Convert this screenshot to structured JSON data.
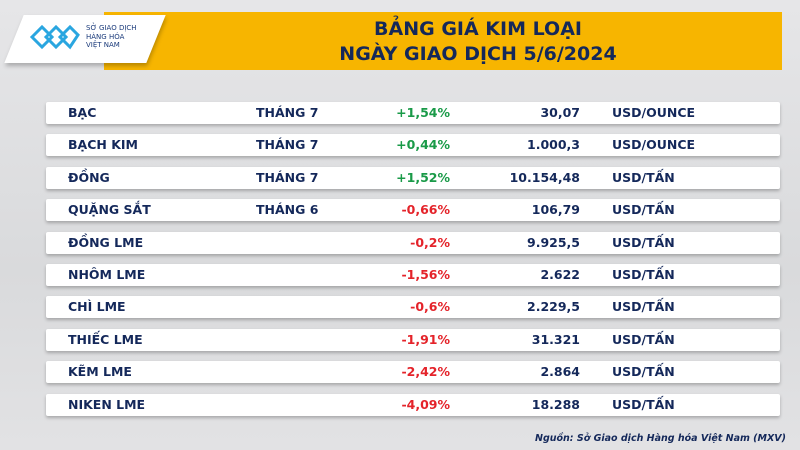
{
  "header": {
    "title_line1": "BẢNG GIÁ KIM LOẠI",
    "title_line2": "NGÀY GIAO DỊCH 5/6/2024",
    "accent": "#f7b500"
  },
  "logo": {
    "line1": "SỞ GIAO DỊCH",
    "line2": "HÀNG HÓA",
    "line3": "VIỆT NAM"
  },
  "rows": [
    {
      "name": "BẠC",
      "term": "THÁNG 7",
      "change": "+1,54%",
      "price": "30,07",
      "unit": "USD/OUNCE",
      "dir": "up"
    },
    {
      "name": "BẠCH KIM",
      "term": "THÁNG 7",
      "change": "+0,44%",
      "price": "1.000,3",
      "unit": "USD/OUNCE",
      "dir": "up"
    },
    {
      "name": "ĐỒNG",
      "term": "THÁNG 7",
      "change": "+1,52%",
      "price": "10.154,48",
      "unit": "USD/TẤN",
      "dir": "up"
    },
    {
      "name": "QUẶNG SẮT",
      "term": "THÁNG 6",
      "change": "-0,66%",
      "price": "106,79",
      "unit": "USD/TẤN",
      "dir": "down"
    },
    {
      "name": "ĐỒNG LME",
      "term": "",
      "change": "-0,2%",
      "price": "9.925,5",
      "unit": "USD/TẤN",
      "dir": "down"
    },
    {
      "name": "NHÔM LME",
      "term": "",
      "change": "-1,56%",
      "price": "2.622",
      "unit": "USD/TẤN",
      "dir": "down"
    },
    {
      "name": "CHÌ LME",
      "term": "",
      "change": "-0,6%",
      "price": "2.229,5",
      "unit": "USD/TẤN",
      "dir": "down"
    },
    {
      "name": "THIẾC LME",
      "term": "",
      "change": "-1,91%",
      "price": "31.321",
      "unit": "USD/TẤN",
      "dir": "down"
    },
    {
      "name": "KẼM LME",
      "term": "",
      "change": "-2,42%",
      "price": "2.864",
      "unit": "USD/TẤN",
      "dir": "down"
    },
    {
      "name": "NIKEN LME",
      "term": "",
      "change": "-4,09%",
      "price": "18.288",
      "unit": "USD/TẤN",
      "dir": "down"
    }
  ],
  "colors": {
    "up": "#1a9a48",
    "down": "#e4232a",
    "text": "#14285a"
  },
  "source": "Nguồn: Sở Giao dịch Hàng hóa Việt Nam (MXV)"
}
